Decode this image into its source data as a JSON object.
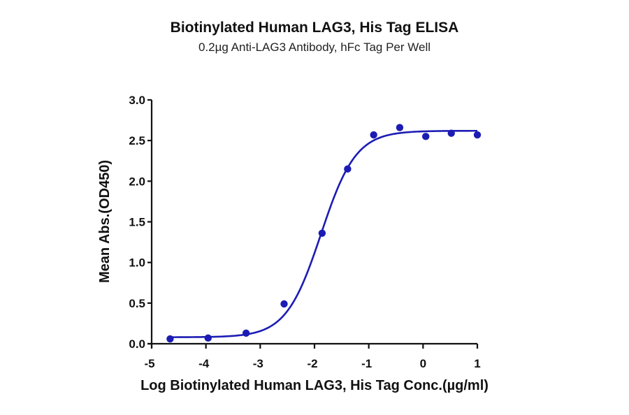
{
  "chart_data": {
    "type": "scatter",
    "title": "Biotinylated Human LAG3, His Tag ELISA",
    "subtitle": "0.2µg Anti-LAG3 Antibody, hFc Tag Per Well",
    "xlabel": "Log Biotinylated Human LAG3, His Tag Conc.(µg/ml)",
    "ylabel": "Mean Abs.(OD450)",
    "xlim": [
      -5,
      1
    ],
    "ylim": [
      0,
      3.0
    ],
    "xticks": [
      "-5",
      "-4",
      "-3",
      "-2",
      "-1",
      "0",
      "1"
    ],
    "yticks": [
      "0.0",
      "0.5",
      "1.0",
      "1.5",
      "2.0",
      "2.5",
      "3.0"
    ],
    "grid": false,
    "legend": null,
    "series": [
      {
        "name": "Mean Abs.(OD450)",
        "color": "#1c1cb4",
        "marker": "circle",
        "x": [
          -4.66,
          -3.96,
          -3.26,
          -2.56,
          -1.86,
          -1.39,
          -0.91,
          -0.43,
          0.05,
          0.52,
          1.0
        ],
        "y": [
          0.06,
          0.07,
          0.13,
          0.49,
          1.36,
          2.15,
          2.57,
          2.66,
          2.55,
          2.59,
          2.57
        ]
      }
    ],
    "fit": {
      "type": "4PL sigmoidal",
      "color": "#1c1cb4",
      "bottom": 0.08,
      "top": 2.62,
      "log_ec50": -1.88,
      "hill_slope": 1.35
    }
  }
}
